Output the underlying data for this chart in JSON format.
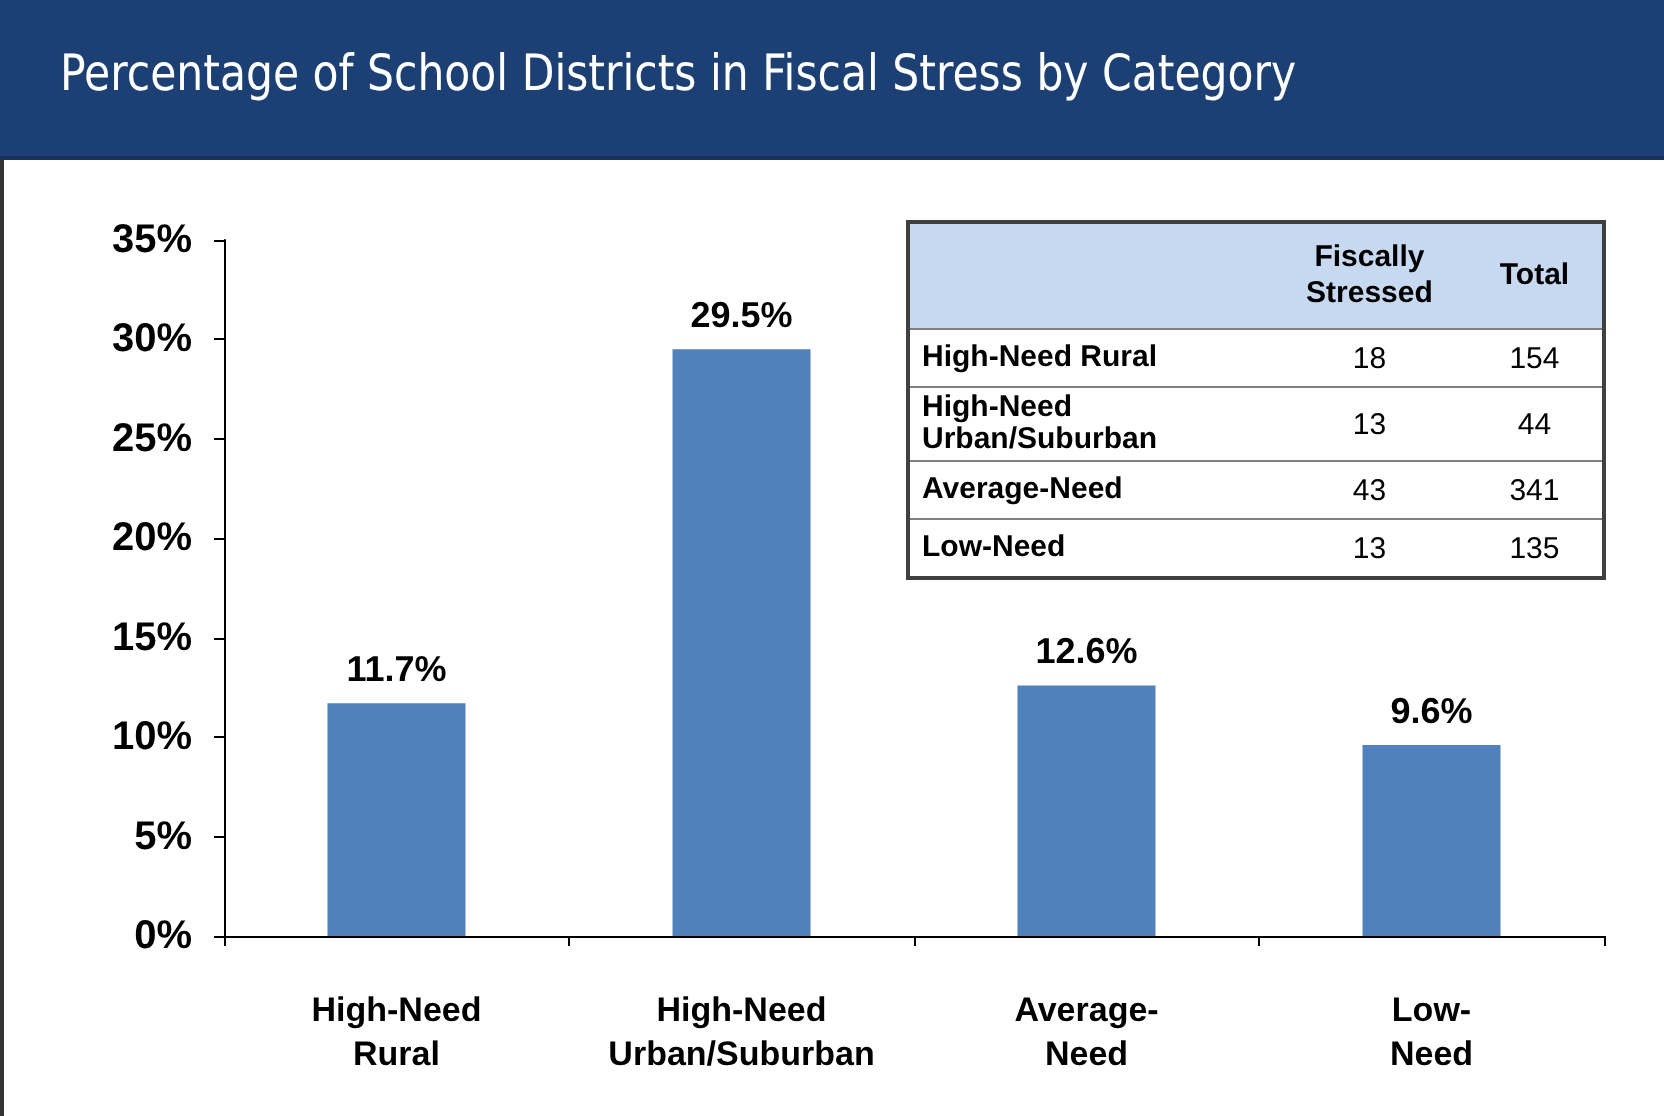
{
  "chart_data": [
    {
      "type": "bar",
      "title": "Percentage of School Districts in Fiscal Stress by Category",
      "categories": [
        "High-Need Rural",
        "High-Need Urban/Suburban",
        "Average-Need",
        "Low-Need"
      ],
      "values": [
        11.7,
        29.5,
        12.6,
        9.6
      ],
      "value_labels": [
        "11.7%",
        "29.5%",
        "12.6%",
        "9.6%"
      ],
      "color": "#4f81bd",
      "ylim": [
        0,
        35
      ],
      "yticks": [
        {
          "value": 0,
          "label": "0%"
        },
        {
          "value": 5,
          "label": "5%"
        },
        {
          "value": 10,
          "label": "10%"
        },
        {
          "value": 15,
          "label": "15%"
        },
        {
          "value": 20,
          "label": "20%"
        },
        {
          "value": 25,
          "label": "25%"
        },
        {
          "value": 30,
          "label": "30%"
        },
        {
          "value": 35,
          "label": "35%"
        }
      ],
      "grid": false
    },
    {
      "type": "other",
      "data_labels": true,
      "categories": [
        "High-Need Rural",
        "High-Need Urban/Suburban",
        "Average-Need",
        "Low-Need"
      ],
      "series": [
        {
          "name": "Fiscally Stressed",
          "values": [
            18,
            13,
            43,
            13
          ]
        },
        {
          "name": "Total",
          "values": [
            154,
            44,
            341,
            135
          ]
        }
      ]
    }
  ]
}
